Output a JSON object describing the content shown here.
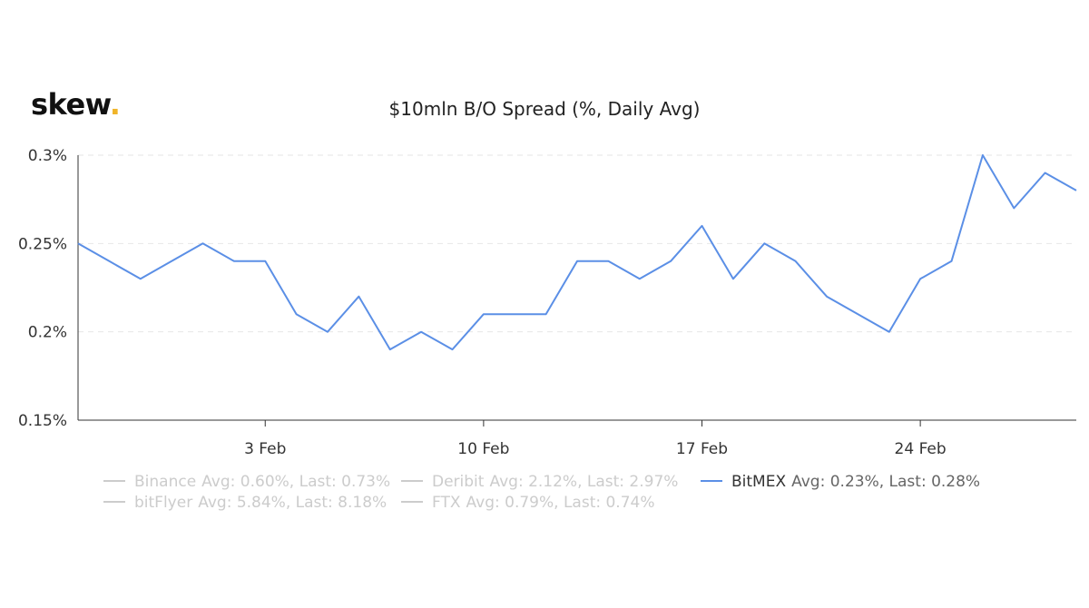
{
  "brand": {
    "name": "skew",
    "dot": "."
  },
  "colors": {
    "series": "#5b8fe6",
    "axis": "#333333",
    "grid": "#e6e6e6",
    "inactive": "#cccccc",
    "active_name": "#333333",
    "active_stats": "#666666"
  },
  "chart_data": {
    "type": "line",
    "title": "$10mln B/O Spread (%, Daily Avg)",
    "x_start": "2020-01-28",
    "x_end": "2020-02-29",
    "x_ticks": [
      {
        "label": "3 Feb",
        "date": "2020-02-03"
      },
      {
        "label": "10 Feb",
        "date": "2020-02-10"
      },
      {
        "label": "17 Feb",
        "date": "2020-02-17"
      },
      {
        "label": "24 Feb",
        "date": "2020-02-24"
      }
    ],
    "y_ticks": [
      {
        "label": "0.3%",
        "value": 0.3
      },
      {
        "label": "0.25%",
        "value": 0.25
      },
      {
        "label": "0.2%",
        "value": 0.2
      },
      {
        "label": "0.15%",
        "value": 0.15
      }
    ],
    "ylim": [
      0.15,
      0.3
    ],
    "grid": true,
    "series": [
      {
        "name": "BitMEX",
        "active": true,
        "points": [
          {
            "date": "2020-01-28",
            "value": 0.25
          },
          {
            "date": "2020-01-29",
            "value": 0.24
          },
          {
            "date": "2020-01-30",
            "value": 0.23
          },
          {
            "date": "2020-01-31",
            "value": 0.24
          },
          {
            "date": "2020-02-01",
            "value": 0.25
          },
          {
            "date": "2020-02-02",
            "value": 0.24
          },
          {
            "date": "2020-02-03",
            "value": 0.24
          },
          {
            "date": "2020-02-04",
            "value": 0.21
          },
          {
            "date": "2020-02-05",
            "value": 0.2
          },
          {
            "date": "2020-02-06",
            "value": 0.22
          },
          {
            "date": "2020-02-07",
            "value": 0.19
          },
          {
            "date": "2020-02-08",
            "value": 0.2
          },
          {
            "date": "2020-02-09",
            "value": 0.19
          },
          {
            "date": "2020-02-10",
            "value": 0.21
          },
          {
            "date": "2020-02-11",
            "value": 0.21
          },
          {
            "date": "2020-02-12",
            "value": 0.21
          },
          {
            "date": "2020-02-13",
            "value": 0.24
          },
          {
            "date": "2020-02-14",
            "value": 0.24
          },
          {
            "date": "2020-02-15",
            "value": 0.23
          },
          {
            "date": "2020-02-16",
            "value": 0.24
          },
          {
            "date": "2020-02-17",
            "value": 0.26
          },
          {
            "date": "2020-02-18",
            "value": 0.23
          },
          {
            "date": "2020-02-19",
            "value": 0.25
          },
          {
            "date": "2020-02-20",
            "value": 0.24
          },
          {
            "date": "2020-02-21",
            "value": 0.22
          },
          {
            "date": "2020-02-22",
            "value": 0.21
          },
          {
            "date": "2020-02-23",
            "value": 0.2
          },
          {
            "date": "2020-02-24",
            "value": 0.23
          },
          {
            "date": "2020-02-25",
            "value": 0.24
          },
          {
            "date": "2020-02-26",
            "value": 0.3
          },
          {
            "date": "2020-02-27",
            "value": 0.27
          },
          {
            "date": "2020-02-28",
            "value": 0.29
          },
          {
            "date": "2020-02-29",
            "value": 0.28
          }
        ]
      }
    ],
    "legend": [
      {
        "name": "Binance",
        "stats": "Avg: 0.60%, Last: 0.73%",
        "active": false
      },
      {
        "name": "Deribit",
        "stats": "Avg: 2.12%, Last: 2.97%",
        "active": false
      },
      {
        "name": "BitMEX",
        "stats": "Avg: 0.23%, Last: 0.28%",
        "active": true
      },
      {
        "name": "bitFlyer",
        "stats": "Avg: 5.84%, Last: 8.18%",
        "active": false
      },
      {
        "name": "FTX",
        "stats": "Avg: 0.79%, Last: 0.74%",
        "active": false
      }
    ]
  }
}
